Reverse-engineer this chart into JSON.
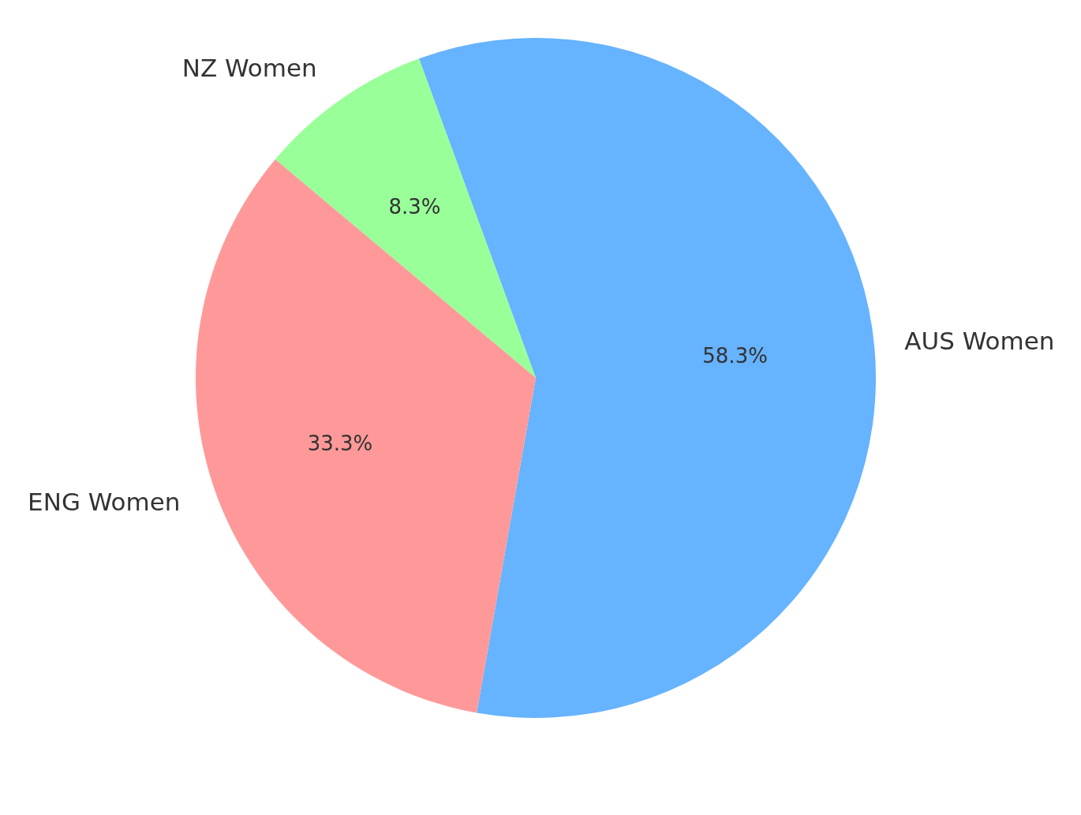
{
  "chart_data": {
    "type": "pie",
    "categories": [
      "AUS Women",
      "NZ Women",
      "ENG Women"
    ],
    "values": [
      58.3,
      8.3,
      33.3
    ],
    "colors": [
      "#66b3ff",
      "#99ff99",
      "#ff9999"
    ],
    "value_labels": [
      "58.3%",
      "8.3%",
      "33.3%"
    ],
    "legend": false
  }
}
